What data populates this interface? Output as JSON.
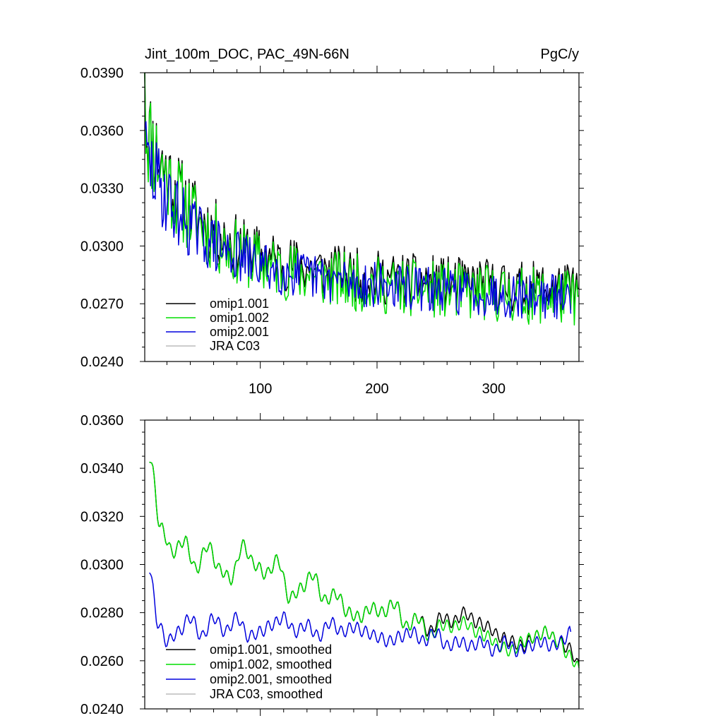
{
  "chart_data": [
    {
      "type": "line",
      "title": "Jint_100m_DOC, PAC_49N-66N",
      "units": "PgC/y",
      "xlim": [
        1,
        373
      ],
      "ylim": [
        0.024,
        0.039
      ],
      "y_ticks": [
        "0.0240",
        "0.0270",
        "0.0300",
        "0.0330",
        "0.0360",
        "0.0390"
      ],
      "x_ticks": [
        "100",
        "200",
        "300"
      ],
      "x_tick_values": [
        100,
        200,
        300
      ],
      "legend_position": "bottom-left",
      "series": [
        {
          "name": "omip1.001",
          "color": "#000000",
          "kind": "raw",
          "x_start": 1,
          "x_end": 373,
          "start": 0.039,
          "late_level": 0.0272,
          "jitter": 0.0014,
          "seed": 11
        },
        {
          "name": "omip1.002",
          "color": "#00dd00",
          "kind": "raw",
          "x_start": 1,
          "x_end": 373,
          "start": 0.039,
          "late_level": 0.0268,
          "jitter": 0.0015,
          "seed": 11
        },
        {
          "name": "omip2.001",
          "color": "#0000dd",
          "kind": "raw",
          "x_start": 1,
          "x_end": 366,
          "start": 0.036,
          "late_level": 0.0268,
          "jitter": 0.0012,
          "seed": 29
        },
        {
          "name": "JRA C03",
          "color": "#bbbbbb",
          "kind": "none"
        }
      ]
    },
    {
      "type": "line",
      "xlim": [
        1,
        373
      ],
      "ylim": [
        0.024,
        0.036
      ],
      "y_ticks": [
        "0.0240",
        "0.0260",
        "0.0280",
        "0.0300",
        "0.0320",
        "0.0340",
        "0.0360"
      ],
      "x_tick_values": [
        100,
        200,
        300
      ],
      "legend_position": "bottom-left",
      "series": [
        {
          "name": "omip1.001, smoothed",
          "color": "#000000",
          "kind": "smooth",
          "x_start": 5,
          "x_end": 373,
          "anchors": [
            [
              5,
              0.0345
            ],
            [
              15,
              0.0315
            ],
            [
              25,
              0.0305
            ],
            [
              35,
              0.031
            ],
            [
              45,
              0.0298
            ],
            [
              55,
              0.0308
            ],
            [
              65,
              0.0298
            ],
            [
              75,
              0.0294
            ],
            [
              85,
              0.0308
            ],
            [
              95,
              0.03
            ],
            [
              105,
              0.0296
            ],
            [
              115,
              0.0302
            ],
            [
              125,
              0.0286
            ],
            [
              135,
              0.029
            ],
            [
              145,
              0.0296
            ],
            [
              155,
              0.0285
            ],
            [
              165,
              0.0288
            ],
            [
              175,
              0.028
            ],
            [
              185,
              0.0278
            ],
            [
              195,
              0.0282
            ],
            [
              205,
              0.028
            ],
            [
              215,
              0.0284
            ],
            [
              225,
              0.0274
            ],
            [
              235,
              0.0278
            ],
            [
              245,
              0.0272
            ],
            [
              255,
              0.0278
            ],
            [
              265,
              0.0276
            ],
            [
              275,
              0.028
            ],
            [
              285,
              0.0276
            ],
            [
              295,
              0.0274
            ],
            [
              305,
              0.027
            ],
            [
              315,
              0.0268
            ],
            [
              325,
              0.0266
            ],
            [
              335,
              0.027
            ],
            [
              345,
              0.0272
            ],
            [
              355,
              0.0268
            ],
            [
              365,
              0.0265
            ],
            [
              373,
              0.0258
            ]
          ]
        },
        {
          "name": "omip1.002, smoothed",
          "color": "#00dd00",
          "kind": "smooth",
          "x_start": 5,
          "x_end": 373,
          "anchors": [
            [
              5,
              0.0345
            ],
            [
              15,
              0.0315
            ],
            [
              25,
              0.0305
            ],
            [
              35,
              0.031
            ],
            [
              45,
              0.0298
            ],
            [
              55,
              0.0308
            ],
            [
              65,
              0.0298
            ],
            [
              75,
              0.0294
            ],
            [
              85,
              0.0308
            ],
            [
              95,
              0.03
            ],
            [
              105,
              0.0296
            ],
            [
              115,
              0.0302
            ],
            [
              125,
              0.0286
            ],
            [
              135,
              0.029
            ],
            [
              145,
              0.0296
            ],
            [
              155,
              0.0285
            ],
            [
              165,
              0.0288
            ],
            [
              175,
              0.028
            ],
            [
              185,
              0.0278
            ],
            [
              195,
              0.0282
            ],
            [
              205,
              0.028
            ],
            [
              215,
              0.0284
            ],
            [
              225,
              0.0274
            ],
            [
              235,
              0.0278
            ],
            [
              245,
              0.027
            ],
            [
              255,
              0.0275
            ],
            [
              265,
              0.0274
            ],
            [
              275,
              0.0276
            ],
            [
              285,
              0.0272
            ],
            [
              295,
              0.027
            ],
            [
              305,
              0.0266
            ],
            [
              315,
              0.0264
            ],
            [
              325,
              0.0268
            ],
            [
              335,
              0.027
            ],
            [
              345,
              0.0272
            ],
            [
              355,
              0.0268
            ],
            [
              365,
              0.0262
            ],
            [
              373,
              0.0257
            ]
          ]
        },
        {
          "name": "omip2.001, smoothed",
          "color": "#0000dd",
          "kind": "smooth",
          "x_start": 5,
          "x_end": 366,
          "anchors": [
            [
              5,
              0.0299
            ],
            [
              12,
              0.0276
            ],
            [
              20,
              0.0268
            ],
            [
              30,
              0.0272
            ],
            [
              40,
              0.0278
            ],
            [
              50,
              0.027
            ],
            [
              60,
              0.0278
            ],
            [
              70,
              0.0272
            ],
            [
              80,
              0.0278
            ],
            [
              90,
              0.027
            ],
            [
              100,
              0.0272
            ],
            [
              110,
              0.0275
            ],
            [
              120,
              0.0278
            ],
            [
              130,
              0.0272
            ],
            [
              140,
              0.0275
            ],
            [
              150,
              0.027
            ],
            [
              160,
              0.0276
            ],
            [
              170,
              0.0272
            ],
            [
              180,
              0.0274
            ],
            [
              190,
              0.0272
            ],
            [
              200,
              0.027
            ],
            [
              210,
              0.0268
            ],
            [
              220,
              0.027
            ],
            [
              230,
              0.0272
            ],
            [
              240,
              0.0268
            ],
            [
              250,
              0.0272
            ],
            [
              260,
              0.0266
            ],
            [
              270,
              0.0268
            ],
            [
              280,
              0.0266
            ],
            [
              290,
              0.0268
            ],
            [
              300,
              0.0264
            ],
            [
              310,
              0.0268
            ],
            [
              320,
              0.0264
            ],
            [
              330,
              0.0266
            ],
            [
              340,
              0.0268
            ],
            [
              350,
              0.0266
            ],
            [
              358,
              0.0268
            ],
            [
              366,
              0.0272
            ]
          ]
        },
        {
          "name": "JRA C03, smoothed",
          "color": "#bbbbbb",
          "kind": "none"
        }
      ]
    }
  ]
}
